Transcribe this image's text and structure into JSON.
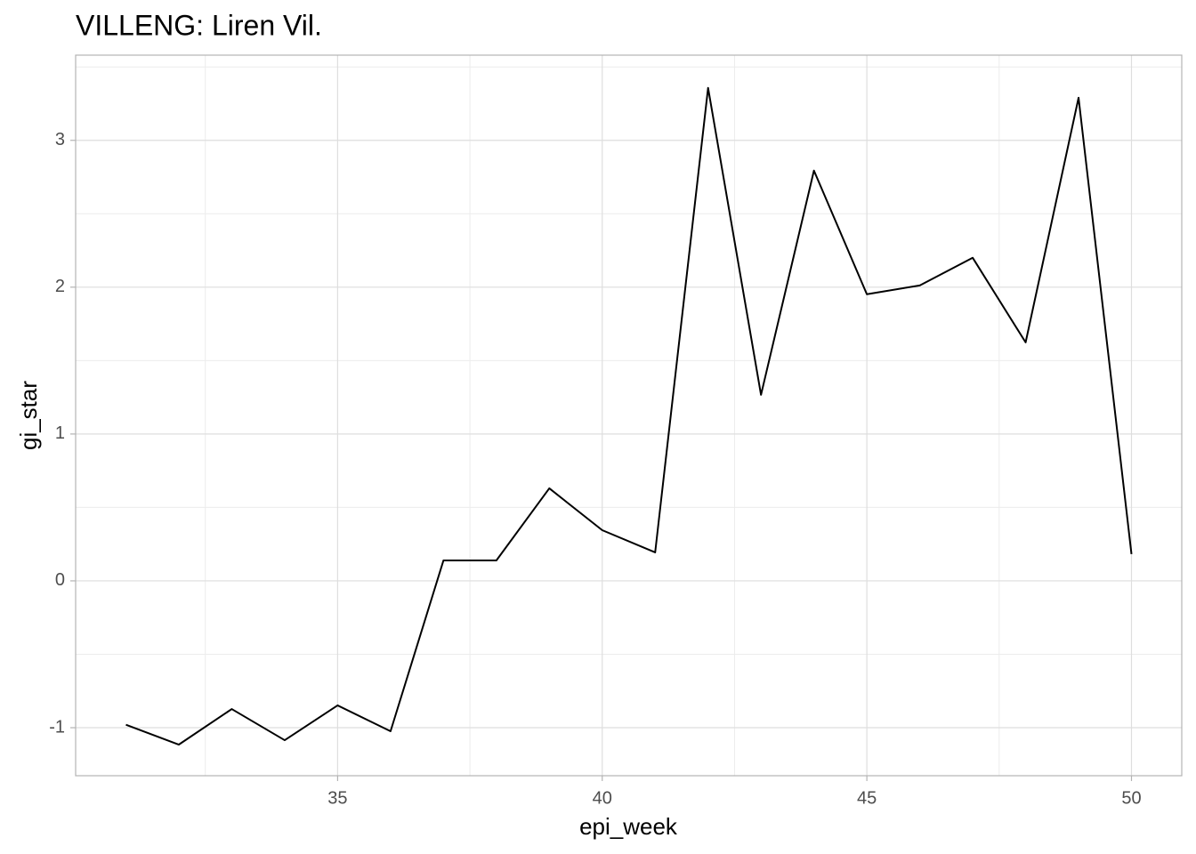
{
  "chart_data": {
    "type": "line",
    "title": "VILLENG: Liren Vil.",
    "x_label": "epi_week",
    "y_label": "gi_star",
    "x": [
      31,
      32,
      33,
      34,
      35,
      36,
      37,
      38,
      39,
      40,
      41,
      42,
      43,
      44,
      45,
      46,
      47,
      48,
      49,
      50
    ],
    "series": [
      {
        "name": "gi_star",
        "color": "#000000",
        "values": [
          -0.98,
          -1.115,
          -0.873,
          -1.085,
          -0.848,
          -1.024,
          0.139,
          0.139,
          0.63,
          0.345,
          0.194,
          3.357,
          1.267,
          2.794,
          1.952,
          2.012,
          2.2,
          1.624,
          3.29,
          0.182
        ]
      }
    ],
    "xlim": [
      30.05,
      50.95
    ],
    "xticks": [
      35,
      40,
      45,
      50
    ],
    "ylim": [
      -1.327,
      3.58
    ],
    "yticks": [
      -1,
      0,
      1,
      2,
      3
    ],
    "grid": true
  }
}
